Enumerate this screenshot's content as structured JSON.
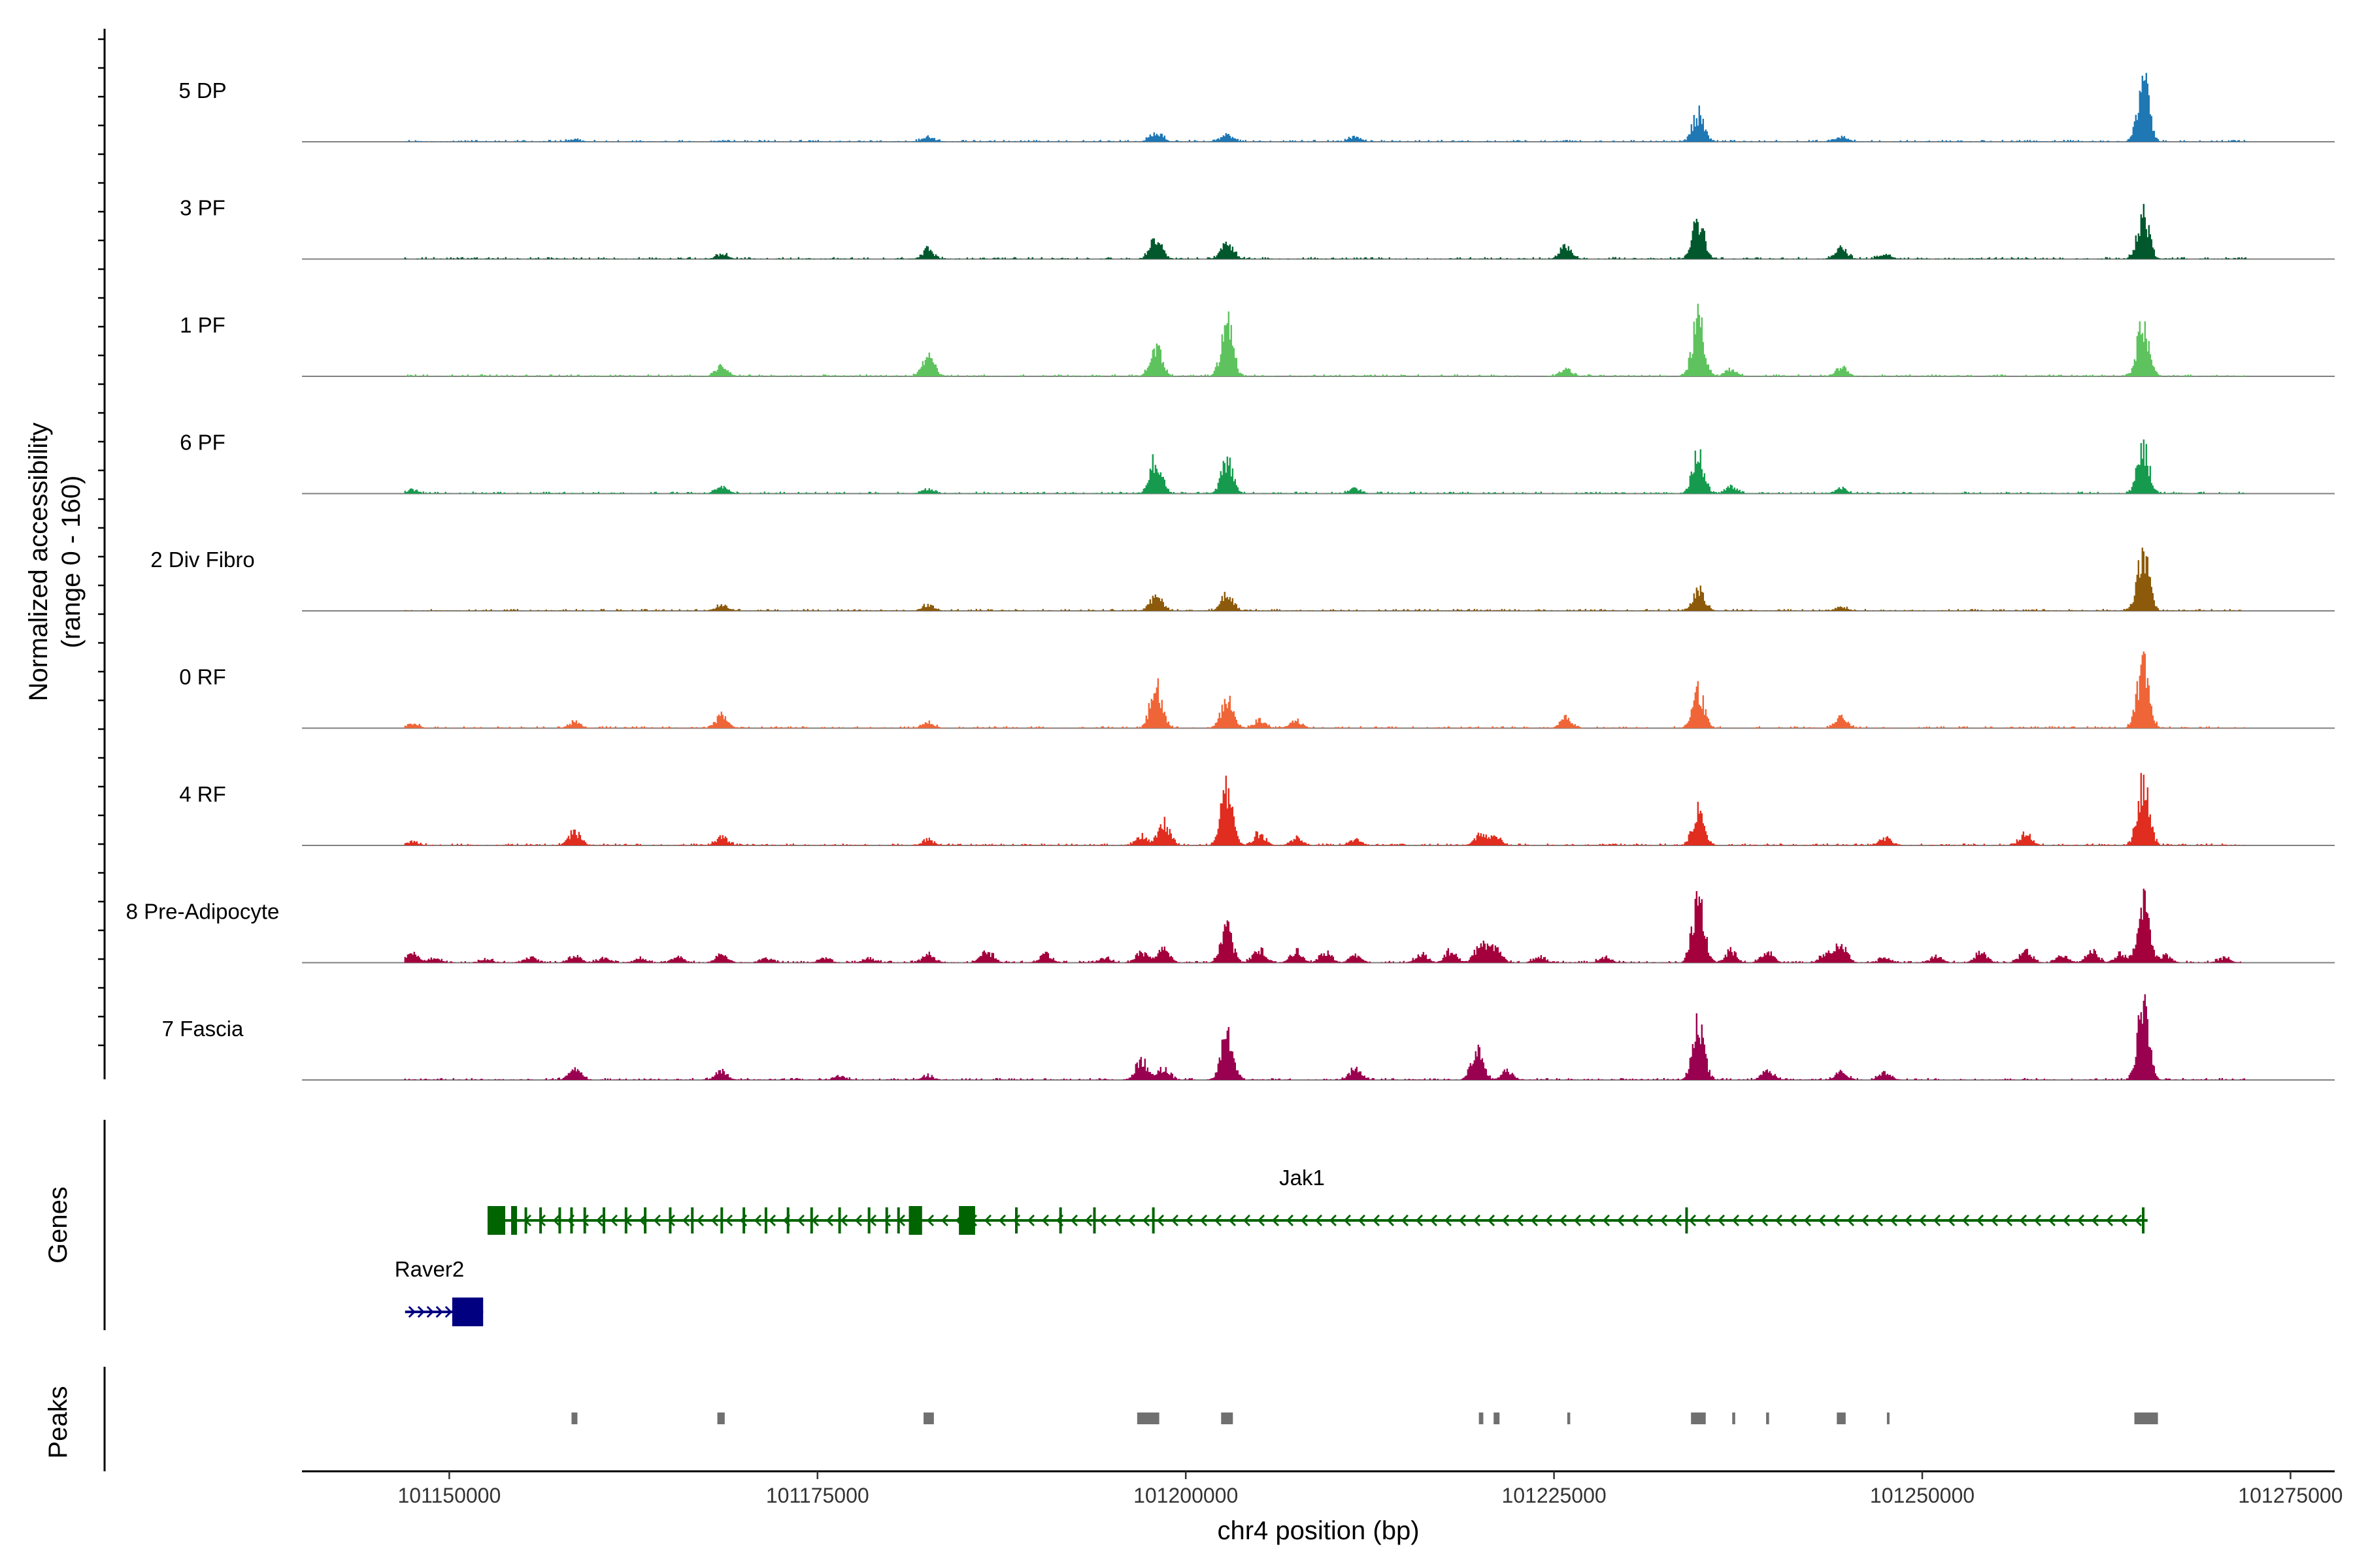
{
  "chart_data": {
    "type": "area",
    "panel": "coverage",
    "ylabel_line1": "Normalized accessibility",
    "ylabel_line2": "(range 0 - 160)",
    "xlabel": "chr4 position (bp)",
    "ylim": [
      0,
      160
    ],
    "xlim": [
      101140000,
      101278000
    ],
    "region": [
      101147000,
      101272000
    ],
    "x_ticks": [
      101150000,
      101175000,
      101200000,
      101225000,
      101250000,
      101275000
    ],
    "x_tick_labels": [
      "101150000",
      "101175000",
      "101200000",
      "101225000",
      "101250000",
      "101275000"
    ],
    "series": [
      {
        "name": "5 DP",
        "color": "#1f77b4",
        "peaks": [
          [
            101158500,
            5
          ],
          [
            101168500,
            2
          ],
          [
            101182500,
            10
          ],
          [
            101198000,
            22
          ],
          [
            101202800,
            15
          ],
          [
            101211500,
            10
          ],
          [
            101234800,
            58
          ],
          [
            101244500,
            10
          ],
          [
            101265000,
            130
          ]
        ]
      },
      {
        "name": "3 PF",
        "color": "#00582c",
        "peaks": [
          [
            101168500,
            10
          ],
          [
            101182500,
            20
          ],
          [
            101198000,
            48
          ],
          [
            101202800,
            38
          ],
          [
            101225800,
            30
          ],
          [
            101234800,
            85
          ],
          [
            101244500,
            22
          ],
          [
            101247500,
            12
          ],
          [
            101265000,
            95
          ]
        ]
      },
      {
        "name": "1 PF",
        "color": "#5ec35e",
        "peaks": [
          [
            101168500,
            22
          ],
          [
            101182500,
            42
          ],
          [
            101198000,
            60
          ],
          [
            101202800,
            110
          ],
          [
            101225800,
            15
          ],
          [
            101234800,
            120
          ],
          [
            101237000,
            16
          ],
          [
            101244500,
            18
          ],
          [
            101265000,
            115
          ]
        ]
      },
      {
        "name": "6 PF",
        "color": "#169b4e",
        "peaks": [
          [
            101147500,
            8
          ],
          [
            101168500,
            15
          ],
          [
            101182500,
            10
          ],
          [
            101198000,
            75
          ],
          [
            101202800,
            68
          ],
          [
            101211500,
            10
          ],
          [
            101234800,
            80
          ],
          [
            101237000,
            15
          ],
          [
            101244500,
            10
          ],
          [
            101265000,
            95
          ]
        ]
      },
      {
        "name": "2 Div Fibro",
        "color": "#8c5a0a",
        "peaks": [
          [
            101168500,
            12
          ],
          [
            101182500,
            12
          ],
          [
            101198000,
            35
          ],
          [
            101202800,
            35
          ],
          [
            101234800,
            48
          ],
          [
            101244500,
            8
          ],
          [
            101265000,
            135
          ]
        ]
      },
      {
        "name": "0 RF",
        "color": "#f06537",
        "peaks": [
          [
            101147500,
            10
          ],
          [
            101158500,
            12
          ],
          [
            101168500,
            28
          ],
          [
            101182500,
            12
          ],
          [
            101198000,
            95
          ],
          [
            101202800,
            62
          ],
          [
            101205000,
            16
          ],
          [
            101207500,
            16
          ],
          [
            101225800,
            22
          ],
          [
            101234800,
            80
          ],
          [
            101244500,
            22
          ],
          [
            101265000,
            135
          ]
        ]
      },
      {
        "name": "4 RF",
        "color": "#e02d1f",
        "peaks": [
          [
            101147500,
            8
          ],
          [
            101158500,
            30
          ],
          [
            101168500,
            18
          ],
          [
            101182500,
            12
          ],
          [
            101197000,
            20
          ],
          [
            101198500,
            50
          ],
          [
            101202800,
            122
          ],
          [
            101205000,
            25
          ],
          [
            101207500,
            15
          ],
          [
            101211500,
            12
          ],
          [
            101220000,
            22
          ],
          [
            101221000,
            18
          ],
          [
            101234800,
            75
          ],
          [
            101247500,
            15
          ],
          [
            101257000,
            25
          ],
          [
            101265000,
            138
          ]
        ]
      },
      {
        "name": "8 Pre-Adipocyte",
        "color": "#a3003c",
        "peaks": [
          [
            101147500,
            20
          ],
          [
            101149000,
            10
          ],
          [
            101152500,
            8
          ],
          [
            101155500,
            12
          ],
          [
            101158500,
            15
          ],
          [
            101160500,
            10
          ],
          [
            101163000,
            10
          ],
          [
            101165500,
            12
          ],
          [
            101168500,
            18
          ],
          [
            101171500,
            10
          ],
          [
            101175500,
            10
          ],
          [
            101178500,
            10
          ],
          [
            101182500,
            18
          ],
          [
            101186500,
            25
          ],
          [
            101190500,
            18
          ],
          [
            101194500,
            10
          ],
          [
            101197000,
            22
          ],
          [
            101198500,
            28
          ],
          [
            101202800,
            70
          ],
          [
            101205000,
            30
          ],
          [
            101207500,
            25
          ],
          [
            101209500,
            22
          ],
          [
            101211500,
            15
          ],
          [
            101216000,
            18
          ],
          [
            101218000,
            25
          ],
          [
            101220000,
            38
          ],
          [
            101221000,
            35
          ],
          [
            101224000,
            12
          ],
          [
            101228500,
            12
          ],
          [
            101234800,
            140
          ],
          [
            101237000,
            25
          ],
          [
            101239500,
            22
          ],
          [
            101243500,
            22
          ],
          [
            101244500,
            40
          ],
          [
            101247500,
            12
          ],
          [
            101251000,
            12
          ],
          [
            101254000,
            22
          ],
          [
            101257000,
            25
          ],
          [
            101259500,
            15
          ],
          [
            101261500,
            25
          ],
          [
            101263500,
            20
          ],
          [
            101265000,
            125
          ],
          [
            101266500,
            15
          ],
          [
            101270500,
            10
          ]
        ]
      },
      {
        "name": "7 Fascia",
        "color": "#990050",
        "peaks": [
          [
            101158500,
            28
          ],
          [
            101168500,
            18
          ],
          [
            101176500,
            8
          ],
          [
            101182500,
            8
          ],
          [
            101197000,
            42
          ],
          [
            101198500,
            25
          ],
          [
            101202800,
            110
          ],
          [
            101211500,
            25
          ],
          [
            101219800,
            70
          ],
          [
            101221800,
            18
          ],
          [
            101234800,
            120
          ],
          [
            101239500,
            20
          ],
          [
            101244500,
            18
          ],
          [
            101247500,
            15
          ],
          [
            101265000,
            150
          ]
        ]
      }
    ]
  },
  "genes_panel": {
    "label": "Genes",
    "genes": [
      {
        "name": "Jak1",
        "strand": "-",
        "color": "#006400",
        "start": 101152600,
        "end": 101265300,
        "exons": [
          [
            101152600,
            101153800
          ],
          [
            101154200,
            101154600
          ],
          [
            101181200,
            101182100
          ],
          [
            101184600,
            101185700
          ]
        ],
        "small_exons": [
          101155200,
          101156200,
          101157500,
          101158300,
          101159200,
          101160500,
          101162000,
          101163300,
          101165000,
          101166500,
          101168500,
          101170000,
          101171500,
          101173000,
          101174600,
          101176500,
          101178500,
          101179700,
          101180500,
          101188500,
          101191500,
          101193800,
          101197800,
          101234000,
          101265000
        ]
      },
      {
        "name": "Raver2",
        "strand": "+",
        "color": "#000080",
        "start": 101147000,
        "end": 101152300,
        "exons": [
          [
            101150200,
            101152300
          ]
        ],
        "small_exons": []
      }
    ]
  },
  "peaks_panel": {
    "label": "Peaks",
    "color": "#707070",
    "regions": [
      [
        101158300,
        101158700
      ],
      [
        101168200,
        101168700
      ],
      [
        101182200,
        101182900
      ],
      [
        101196700,
        101198200
      ],
      [
        101202400,
        101203200
      ],
      [
        101219900,
        101220200
      ],
      [
        101220900,
        101221300
      ],
      [
        101225900,
        101226100
      ],
      [
        101234300,
        101235300
      ],
      [
        101237100,
        101237300
      ],
      [
        101239400,
        101239600
      ],
      [
        101244200,
        101244800
      ],
      [
        101247600,
        101247700
      ],
      [
        101264400,
        101266000
      ]
    ]
  }
}
